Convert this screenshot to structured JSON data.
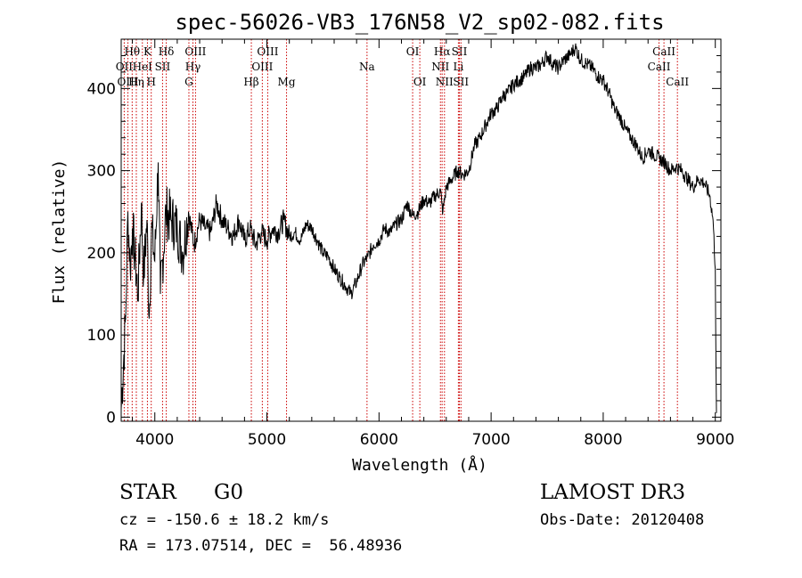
{
  "colors": {
    "spectrum": "#000000",
    "line_marker": "#cc0000",
    "axes": "#000000",
    "background": "#ffffff"
  },
  "chart_data": {
    "type": "line",
    "title": "spec-56026-VB3_176N58_V2_sp02-082.fits",
    "xlabel": "Wavelength (Å)",
    "ylabel": "Flux (relative)",
    "xlim": [
      3700,
      9050
    ],
    "ylim": [
      -5,
      460
    ],
    "xticks": [
      4000,
      5000,
      6000,
      7000,
      8000,
      9000
    ],
    "xtick_labels": [
      "4000",
      "5000",
      "6000",
      "7000",
      "8000",
      "9000"
    ],
    "yticks": [
      0,
      100,
      200,
      300,
      400
    ],
    "ytick_labels": [
      "0",
      "100",
      "200",
      "300",
      "400"
    ],
    "series": [
      {
        "name": "flux",
        "x": [
          3700,
          3740,
          3760,
          3780,
          3800,
          3820,
          3850,
          3880,
          3900,
          3930,
          3950,
          3970,
          4000,
          4030,
          4050,
          4100,
          4150,
          4200,
          4250,
          4300,
          4350,
          4400,
          4450,
          4500,
          4550,
          4600,
          4650,
          4700,
          4750,
          4800,
          4850,
          4900,
          4950,
          5000,
          5050,
          5100,
          5150,
          5200,
          5250,
          5300,
          5350,
          5400,
          5450,
          5500,
          5550,
          5600,
          5650,
          5700,
          5750,
          5800,
          5850,
          5900,
          5950,
          6000,
          6050,
          6100,
          6150,
          6200,
          6250,
          6300,
          6350,
          6400,
          6450,
          6500,
          6550,
          6560,
          6570,
          6600,
          6650,
          6700,
          6750,
          6800,
          6850,
          6900,
          6950,
          7000,
          7050,
          7100,
          7150,
          7200,
          7250,
          7300,
          7350,
          7400,
          7450,
          7500,
          7550,
          7600,
          7650,
          7700,
          7750,
          7800,
          7850,
          7900,
          7950,
          8000,
          8050,
          8100,
          8150,
          8200,
          8250,
          8300,
          8350,
          8400,
          8450,
          8500,
          8550,
          8600,
          8650,
          8700,
          8750,
          8800,
          8850,
          8900,
          8950,
          8980,
          9000,
          9010
        ],
        "y": [
          10,
          120,
          250,
          180,
          230,
          200,
          150,
          260,
          170,
          240,
          120,
          230,
          190,
          310,
          150,
          250,
          240,
          230,
          200,
          250,
          210,
          240,
          230,
          225,
          260,
          240,
          230,
          220,
          240,
          215,
          230,
          210,
          225,
          215,
          230,
          225,
          240,
          220,
          225,
          215,
          235,
          230,
          215,
          200,
          195,
          180,
          170,
          160,
          150,
          165,
          185,
          195,
          210,
          215,
          230,
          225,
          235,
          240,
          260,
          245,
          250,
          265,
          260,
          270,
          275,
          260,
          250,
          280,
          290,
          300,
          295,
          300,
          330,
          340,
          355,
          370,
          375,
          390,
          395,
          405,
          410,
          415,
          425,
          425,
          430,
          440,
          430,
          425,
          435,
          440,
          450,
          435,
          430,
          425,
          415,
          410,
          395,
          375,
          365,
          350,
          340,
          330,
          315,
          325,
          320,
          315,
          310,
          300,
          305,
          300,
          290,
          280,
          290,
          285,
          270,
          240,
          180,
          5
        ]
      }
    ],
    "line_markers": [
      {
        "label": "Hθ",
        "wavelength": 3798,
        "row": 1
      },
      {
        "label": "OII",
        "wavelength": 3727,
        "row": 2
      },
      {
        "label": "OIII",
        "wavelength": 3760,
        "row": 3
      },
      {
        "label": "K",
        "wavelength": 3934,
        "row": 1
      },
      {
        "label": "HeI",
        "wavelength": 3889,
        "row": 2
      },
      {
        "label": "Hη",
        "wavelength": 3835,
        "row": 3
      },
      {
        "label": "SII",
        "wavelength": 4069,
        "row": 2
      },
      {
        "label": "H",
        "wavelength": 3968,
        "row": 3
      },
      {
        "label": "Hδ",
        "wavelength": 4102,
        "row": 1
      },
      {
        "label": "OIII",
        "wavelength": 4363,
        "row": 1
      },
      {
        "label": "Hγ",
        "wavelength": 4340,
        "row": 2
      },
      {
        "label": "G",
        "wavelength": 4304,
        "row": 3
      },
      {
        "label": "OIII",
        "wavelength": 5007,
        "row": 1
      },
      {
        "label": "OIII",
        "wavelength": 4959,
        "row": 2
      },
      {
        "label": "Hβ",
        "wavelength": 4861,
        "row": 3
      },
      {
        "label": "Mg",
        "wavelength": 5175,
        "row": 3
      },
      {
        "label": "Na",
        "wavelength": 5893,
        "row": 2
      },
      {
        "label": "OI",
        "wavelength": 6300,
        "row": 1
      },
      {
        "label": "OI",
        "wavelength": 6364,
        "row": 3
      },
      {
        "label": "Hα",
        "wavelength": 6563,
        "row": 1
      },
      {
        "label": "NII",
        "wavelength": 6548,
        "row": 2
      },
      {
        "label": "NII",
        "wavelength": 6584,
        "row": 3
      },
      {
        "label": "SII",
        "wavelength": 6717,
        "row": 1
      },
      {
        "label": "Li",
        "wavelength": 6708,
        "row": 2
      },
      {
        "label": "SII",
        "wavelength": 6731,
        "row": 3
      },
      {
        "label": "CaII",
        "wavelength": 8542,
        "row": 1
      },
      {
        "label": "CaII",
        "wavelength": 8498,
        "row": 2
      },
      {
        "label": "CaII",
        "wavelength": 8662,
        "row": 3
      }
    ]
  },
  "info": {
    "class_label": "STAR",
    "subclass": "G0",
    "survey": "LAMOST DR3",
    "cz": "cz = -150.6 ± 18.2 km/s",
    "obs_date": "Obs-Date: 20120408",
    "coords": "RA = 173.07514, DEC =  56.48936"
  }
}
